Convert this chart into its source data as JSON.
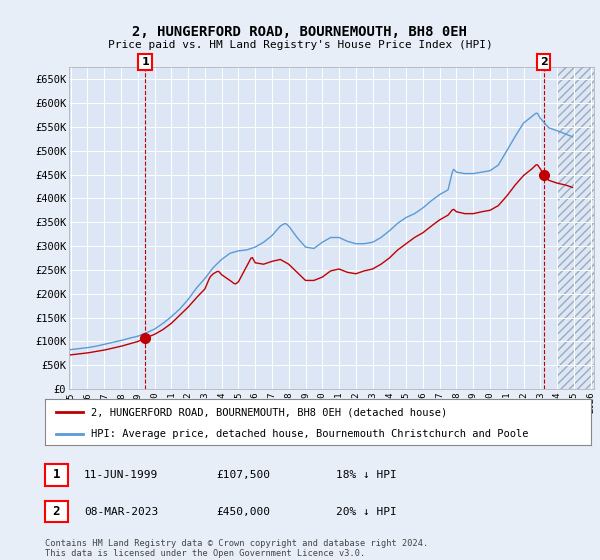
{
  "title": "2, HUNGERFORD ROAD, BOURNEMOUTH, BH8 0EH",
  "subtitle": "Price paid vs. HM Land Registry's House Price Index (HPI)",
  "background_color": "#e8eef8",
  "plot_bg_color": "#dce6f5",
  "hpi_color": "#5b9bd5",
  "price_color": "#c00000",
  "hatch_color": "#b0b8c8",
  "legend_label_price": "2, HUNGERFORD ROAD, BOURNEMOUTH, BH8 0EH (detached house)",
  "legend_label_hpi": "HPI: Average price, detached house, Bournemouth Christchurch and Poole",
  "note": "Contains HM Land Registry data © Crown copyright and database right 2024.\nThis data is licensed under the Open Government Licence v3.0.",
  "sale1_label": "1",
  "sale1_date": "11-JUN-1999",
  "sale1_price": "£107,500",
  "sale1_hpi": "18% ↓ HPI",
  "sale1_x": 1999.44,
  "sale1_y": 107500,
  "sale2_label": "2",
  "sale2_date": "08-MAR-2023",
  "sale2_price": "£450,000",
  "sale2_hpi": "20% ↓ HPI",
  "sale2_x": 2023.19,
  "sale2_y": 450000,
  "ylim": [
    0,
    675000
  ],
  "yticks": [
    0,
    50000,
    100000,
    150000,
    200000,
    250000,
    300000,
    350000,
    400000,
    450000,
    500000,
    550000,
    600000,
    650000
  ],
  "ytick_labels": [
    "£0",
    "£50K",
    "£100K",
    "£150K",
    "£200K",
    "£250K",
    "£300K",
    "£350K",
    "£400K",
    "£450K",
    "£500K",
    "£550K",
    "£600K",
    "£650K"
  ],
  "xlim": [
    1994.9,
    2026.2
  ],
  "hatch_start": 2024.0,
  "xtick_years": [
    1995,
    1996,
    1997,
    1998,
    1999,
    2000,
    2001,
    2002,
    2003,
    2004,
    2005,
    2006,
    2007,
    2008,
    2009,
    2010,
    2011,
    2012,
    2013,
    2014,
    2015,
    2016,
    2017,
    2018,
    2019,
    2020,
    2021,
    2022,
    2023,
    2024,
    2025,
    2026
  ]
}
